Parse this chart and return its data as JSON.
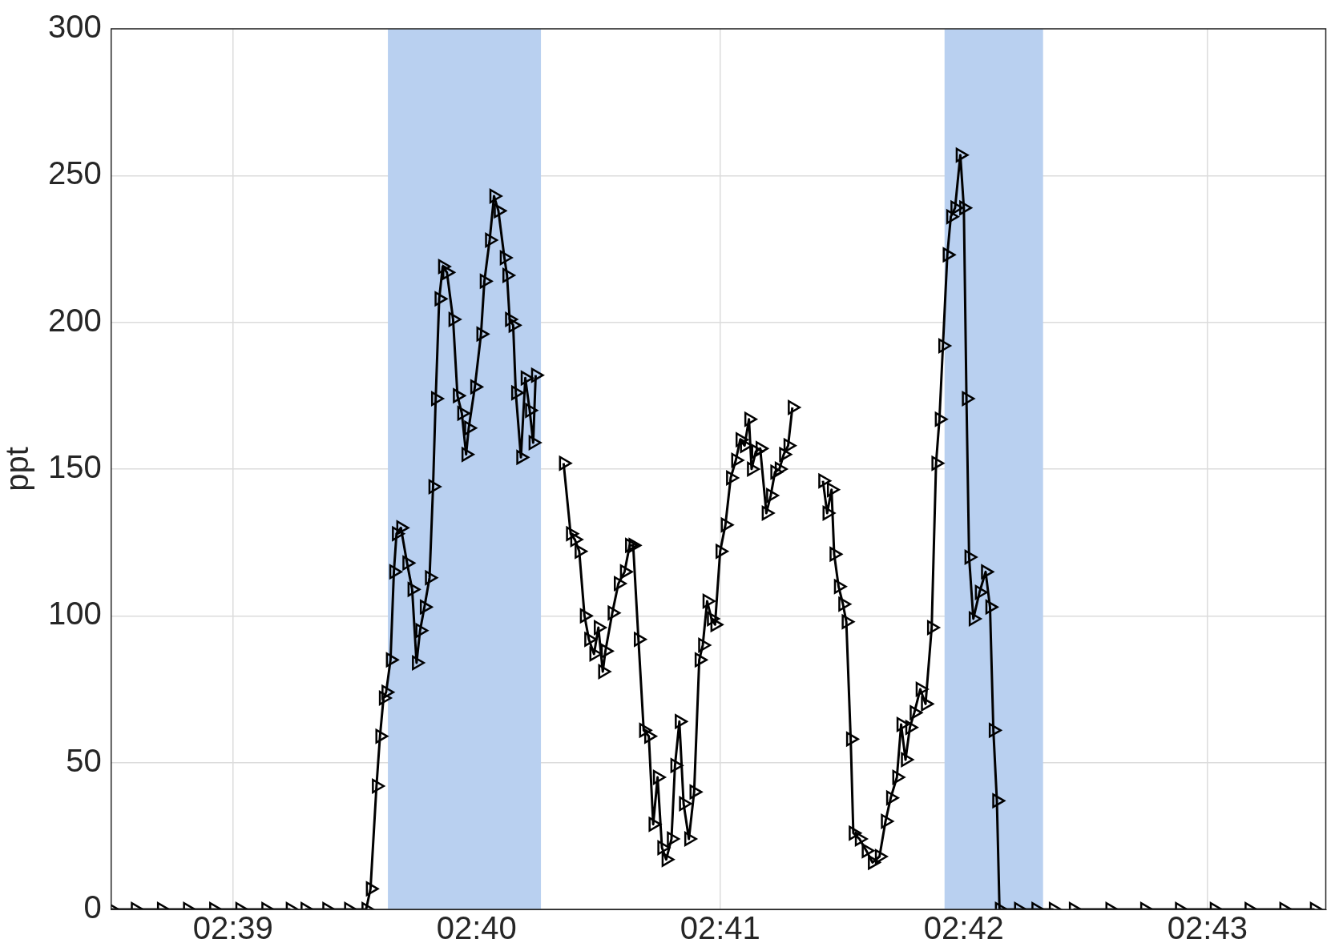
{
  "chart_data": {
    "type": "line",
    "ylabel": "ppt",
    "xlim": [
      2.64167,
      2.72476
    ],
    "ylim": [
      0,
      300
    ],
    "yticks": [
      0,
      50,
      100,
      150,
      200,
      250,
      300
    ],
    "xticks": [
      {
        "value": 2.65,
        "label": "02:39"
      },
      {
        "value": 2.66667,
        "label": "02:40"
      },
      {
        "value": 2.68333,
        "label": "02:41"
      },
      {
        "value": 2.7,
        "label": "02:42"
      },
      {
        "value": 2.71667,
        "label": "02:43"
      }
    ],
    "grid": true,
    "legend": false,
    "marker": "triangle",
    "line_style": "solid",
    "bands": [
      {
        "axis": "x",
        "from": 2.6606,
        "to": 2.67107,
        "color": "#b9d0f0"
      },
      {
        "axis": "x",
        "from": 2.69868,
        "to": 2.70542,
        "color": "#b9d0f0"
      }
    ],
    "series": [
      {
        "color": "#000000",
        "x": [
          2.64167,
          2.64333,
          2.64512,
          2.6469,
          2.64869,
          2.65048,
          2.65226,
          2.65393,
          2.65441,
          2.65494,
          2.65643,
          2.65792,
          2.65911,
          2.65941,
          2.65982,
          2.66006,
          2.6603,
          2.66048,
          2.66078,
          2.66101,
          2.66119,
          2.66149,
          2.66191,
          2.66226,
          2.66256,
          2.6628,
          2.6631,
          2.66345,
          2.66369,
          2.66387,
          2.66411,
          2.66435,
          2.66464,
          2.66506,
          2.66536,
          2.66566,
          2.66595,
          2.66613,
          2.66655,
          2.66697,
          2.6672,
          2.66756,
          2.66786,
          2.66816,
          2.66857,
          2.66875,
          2.66893,
          2.66917,
          2.66935,
          2.6697,
          2.67,
          2.6703,
          2.67054,
          2.67071,
          2.67167,
          2.67262,
          2.6731,
          2.67339,
          2.67369,
          2.67405,
          2.67435,
          2.6747,
          2.675,
          2.6753,
          2.67548,
          2.67595,
          2.67637,
          2.67679,
          2.67714,
          2.67738,
          2.67774,
          2.6781,
          2.67845,
          2.67875,
          2.67905,
          2.67935,
          2.67964,
          2.68,
          2.68024,
          2.68054,
          2.68083,
          2.68119,
          2.68155,
          2.6819,
          2.68214,
          2.68244,
          2.68274,
          2.68298,
          2.68333,
          2.68369,
          2.68405,
          2.6844,
          2.6847,
          2.685,
          2.6853,
          2.68548,
          2.68577,
          2.68607,
          2.68649,
          2.68679,
          2.68708,
          2.68738,
          2.68768,
          2.68798,
          2.68827,
          2.68929,
          2.69036,
          2.69065,
          2.69095,
          2.69113,
          2.69143,
          2.69173,
          2.69196,
          2.69226,
          2.69244,
          2.69286,
          2.69333,
          2.69375,
          2.69423,
          2.69464,
          2.695,
          2.69542,
          2.69571,
          2.69601,
          2.69631,
          2.69661,
          2.69702,
          2.69738,
          2.6978,
          2.6981,
          2.69833,
          2.69857,
          2.69887,
          2.69911,
          2.6994,
          2.69976,
          2.7,
          2.70018,
          2.70036,
          2.70065,
          2.70107,
          2.70149,
          2.70179,
          2.70202,
          2.70226,
          2.70244,
          2.70375,
          2.70494,
          2.70613,
          2.70685,
          2.7075,
          2.71,
          2.71238,
          2.71476,
          2.71714,
          2.71952,
          2.7219,
          2.72399
        ],
        "values": [
          0,
          0,
          0,
          0,
          0,
          0,
          0,
          0,
          null,
          0,
          0,
          0,
          0,
          7,
          42,
          59,
          72,
          74,
          85,
          115,
          128,
          130,
          118,
          109,
          84,
          95,
          103,
          113,
          144,
          174,
          208,
          219,
          217,
          201,
          175,
          169,
          155,
          164,
          178,
          196,
          214,
          228,
          243,
          238,
          222,
          216,
          201,
          199,
          176,
          154,
          181,
          170,
          159,
          182,
          null,
          152,
          128,
          126,
          122,
          100,
          92,
          87,
          96,
          81,
          88,
          101,
          111,
          115,
          124,
          124,
          92,
          61,
          59,
          29,
          45,
          21,
          17,
          24,
          49,
          64,
          36,
          24,
          40,
          85,
          90,
          105,
          99,
          97,
          122,
          131,
          147,
          153,
          160,
          158,
          167,
          150,
          156,
          157,
          135,
          141,
          149,
          150,
          155,
          158,
          171,
          null,
          146,
          135,
          143,
          121,
          110,
          104,
          98,
          58,
          26,
          24,
          20,
          16,
          18,
          30,
          38,
          45,
          63,
          51,
          62,
          67,
          75,
          70,
          96,
          152,
          167,
          192,
          223,
          236,
          239,
          257,
          239,
          174,
          120,
          99,
          108,
          115,
          103,
          61,
          37,
          0,
          0,
          0,
          0,
          null,
          0,
          0,
          0,
          0,
          0,
          0,
          0,
          0
        ]
      }
    ]
  }
}
